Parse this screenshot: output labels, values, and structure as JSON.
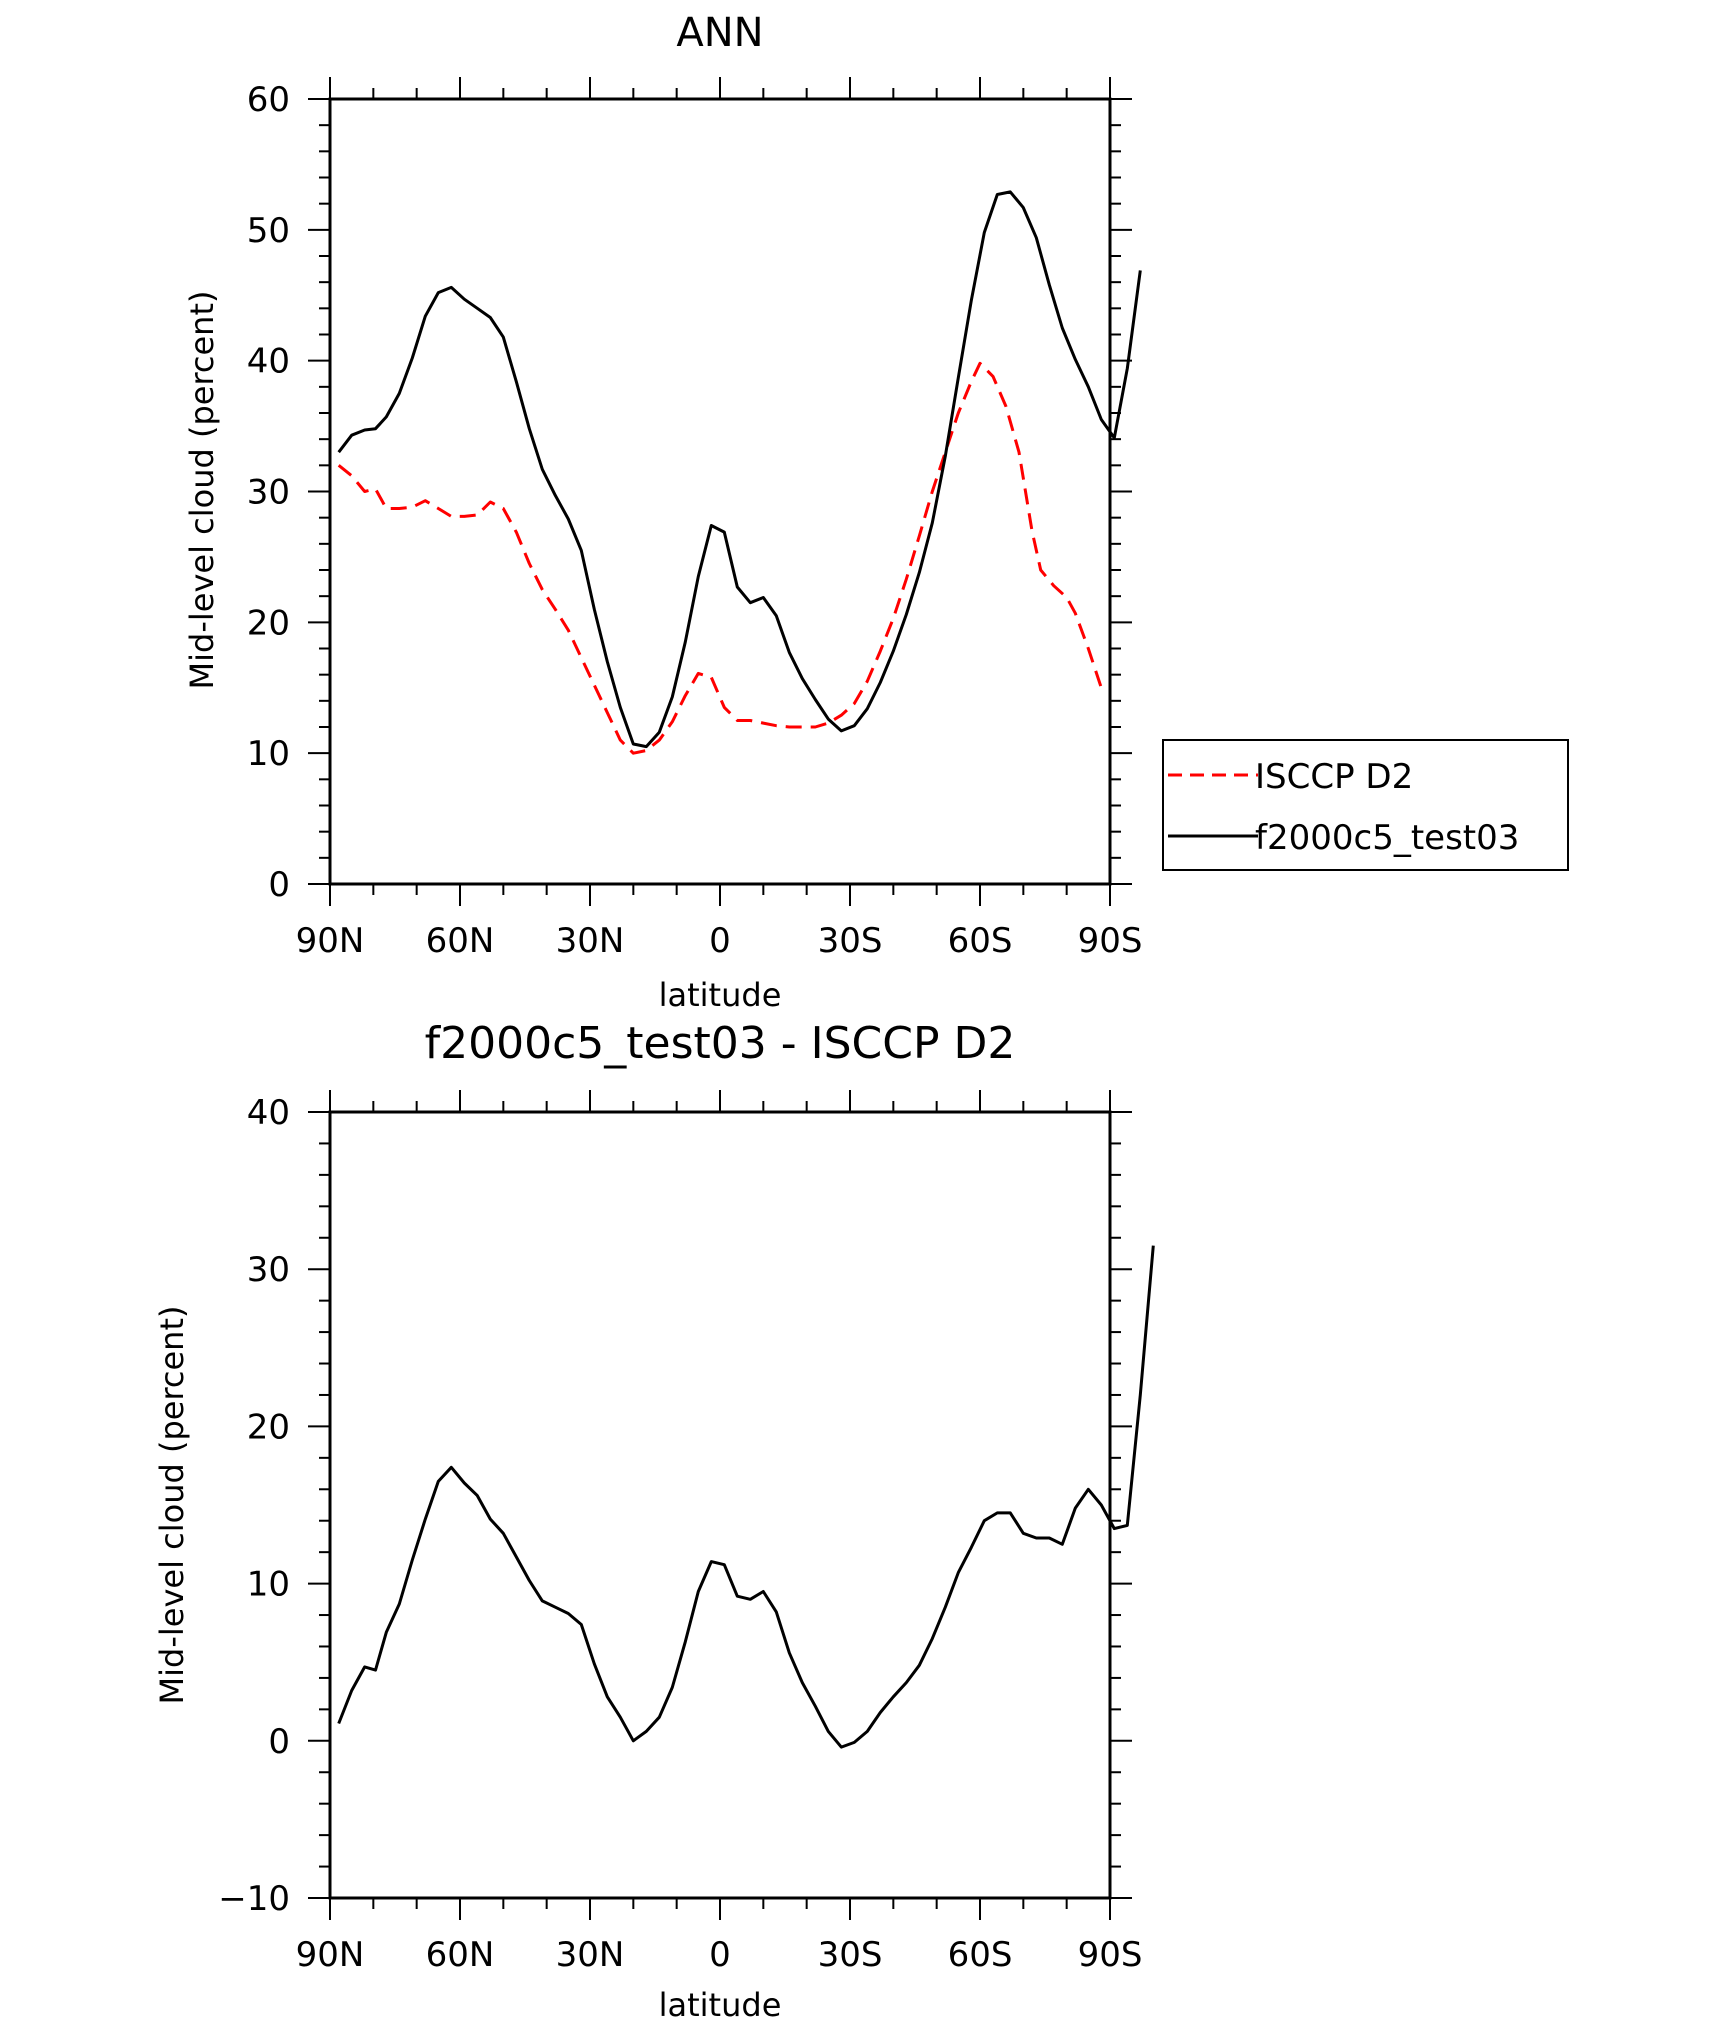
{
  "chart_data": [
    {
      "type": "line",
      "title": "ANN",
      "xlabel": "latitude",
      "ylabel": "Mid-level cloud (percent)",
      "xlim": [
        90,
        -90
      ],
      "ylim": [
        0,
        60
      ],
      "x_ticks": [
        90,
        60,
        30,
        0,
        -30,
        -60,
        -90
      ],
      "x_tick_labels": [
        "90N",
        "60N",
        "30N",
        "0",
        "30S",
        "60S",
        "90S"
      ],
      "y_ticks": [
        0,
        10,
        20,
        30,
        40,
        50,
        60
      ],
      "y_tick_labels": [
        "0",
        "10",
        "20",
        "30",
        "40",
        "50",
        "60"
      ],
      "legend_position": "right",
      "series": [
        {
          "name": "ISCCP D2",
          "color": "#ff0000",
          "style": "dashed",
          "points": [
            [
              88,
              32.0
            ],
            [
              85,
              31.2
            ],
            [
              82,
              30.0
            ],
            [
              79.5,
              30.2
            ],
            [
              77,
              28.7
            ],
            [
              74,
              28.7
            ],
            [
              71,
              28.8
            ],
            [
              68,
              29.3
            ],
            [
              65,
              28.7
            ],
            [
              62,
              28.1
            ],
            [
              59,
              28.1
            ],
            [
              56,
              28.2
            ],
            [
              53,
              29.2
            ],
            [
              50,
              28.7
            ],
            [
              47,
              26.9
            ],
            [
              44,
              24.5
            ],
            [
              41,
              22.5
            ],
            [
              38,
              21.0
            ],
            [
              35,
              19.4
            ],
            [
              32,
              17.3
            ],
            [
              29,
              15.2
            ],
            [
              26,
              13.1
            ],
            [
              23,
              11.0
            ],
            [
              20,
              10.0
            ],
            [
              17,
              10.2
            ],
            [
              14,
              11.0
            ],
            [
              11,
              12.4
            ],
            [
              8,
              14.4
            ],
            [
              5,
              16.1
            ],
            [
              2,
              15.8
            ],
            [
              -1,
              13.5
            ],
            [
              -4,
              12.5
            ],
            [
              -7,
              12.5
            ],
            [
              -10,
              12.3
            ],
            [
              -13,
              12.1
            ],
            [
              -16,
              12.0
            ],
            [
              -19,
              12.0
            ],
            [
              -22,
              12.0
            ],
            [
              -25,
              12.3
            ],
            [
              -28,
              12.9
            ],
            [
              -31,
              13.8
            ],
            [
              -34,
              15.5
            ],
            [
              -37,
              17.8
            ],
            [
              -40,
              20.3
            ],
            [
              -43,
              23.3
            ],
            [
              -46,
              26.6
            ],
            [
              -49,
              30.0
            ],
            [
              -52,
              33.0
            ],
            [
              -55,
              36.0
            ],
            [
              -58,
              38.4
            ],
            [
              -60,
              39.8
            ],
            [
              -63,
              38.8
            ],
            [
              -66,
              36.5
            ],
            [
              -69,
              33.0
            ],
            [
              -72,
              27.0
            ],
            [
              -74,
              24.0
            ],
            [
              -77,
              22.8
            ],
            [
              -80,
              21.9
            ],
            [
              -82,
              20.7
            ],
            [
              -85,
              18.0
            ],
            [
              -88,
              15.0
            ]
          ]
        },
        {
          "name": "f2000c5_test03",
          "color": "#000000",
          "style": "solid",
          "points": [
            [
              88,
              33.0
            ],
            [
              85,
              34.3
            ],
            [
              82,
              34.7
            ],
            [
              79.5,
              34.8
            ],
            [
              77,
              35.7
            ],
            [
              74,
              37.5
            ],
            [
              71,
              40.2
            ],
            [
              68,
              43.4
            ],
            [
              65,
              45.2
            ],
            [
              62,
              45.6
            ],
            [
              59,
              44.7
            ],
            [
              56,
              44.0
            ],
            [
              53,
              43.3
            ],
            [
              50,
              41.8
            ],
            [
              47,
              38.4
            ],
            [
              44,
              34.8
            ],
            [
              41,
              31.7
            ],
            [
              38,
              29.7
            ],
            [
              35,
              27.9
            ],
            [
              32,
              25.5
            ],
            [
              29,
              21.0
            ],
            [
              26,
              17.0
            ],
            [
              23,
              13.5
            ],
            [
              20,
              10.7
            ],
            [
              17,
              10.5
            ],
            [
              14,
              11.6
            ],
            [
              11,
              14.3
            ],
            [
              8,
              18.5
            ],
            [
              5,
              23.5
            ],
            [
              2,
              27.4
            ],
            [
              -1,
              26.9
            ],
            [
              -4,
              22.7
            ],
            [
              -7,
              21.5
            ],
            [
              -10,
              21.9
            ],
            [
              -13,
              20.5
            ],
            [
              -16,
              17.7
            ],
            [
              -19,
              15.7
            ],
            [
              -22,
              14.1
            ],
            [
              -25,
              12.6
            ],
            [
              -28,
              11.7
            ],
            [
              -31,
              12.1
            ],
            [
              -34,
              13.4
            ],
            [
              -37,
              15.4
            ],
            [
              -40,
              17.8
            ],
            [
              -43,
              20.6
            ],
            [
              -46,
              23.8
            ],
            [
              -49,
              27.6
            ],
            [
              -52,
              32.7
            ],
            [
              -55,
              38.7
            ],
            [
              -58,
              44.6
            ],
            [
              -61,
              49.8
            ],
            [
              -64,
              52.7
            ],
            [
              -67,
              52.9
            ],
            [
              -70,
              51.7
            ],
            [
              -73,
              49.4
            ],
            [
              -76,
              45.8
            ],
            [
              -79,
              42.5
            ],
            [
              -82,
              40.1
            ],
            [
              -85,
              38.0
            ],
            [
              -88,
              35.5
            ],
            [
              -91,
              34.1
            ],
            [
              -94,
              39.4
            ],
            [
              -97,
              46.9
            ]
          ]
        }
      ]
    },
    {
      "type": "line",
      "title": "f2000c5_test03 - ISCCP D2",
      "xlabel": "latitude",
      "ylabel": "Mid-level cloud (percent)",
      "xlim": [
        90,
        -90
      ],
      "ylim": [
        -10,
        40
      ],
      "x_ticks": [
        90,
        60,
        30,
        0,
        -30,
        -60,
        -90
      ],
      "x_tick_labels": [
        "90N",
        "60N",
        "30N",
        "0",
        "30S",
        "60S",
        "90S"
      ],
      "y_ticks": [
        -10,
        0,
        10,
        20,
        30,
        40
      ],
      "y_tick_labels": [
        "−10",
        "0",
        "10",
        "20",
        "30",
        "40"
      ],
      "series": [
        {
          "color": "#000000",
          "style": "solid",
          "points": [
            [
              88,
              1.1
            ],
            [
              85,
              3.2
            ],
            [
              82,
              4.7
            ],
            [
              79.5,
              4.5
            ],
            [
              77,
              6.9
            ],
            [
              74,
              8.7
            ],
            [
              71,
              11.5
            ],
            [
              68,
              14.1
            ],
            [
              65,
              16.5
            ],
            [
              62,
              17.4
            ],
            [
              59,
              16.4
            ],
            [
              56,
              15.6
            ],
            [
              53,
              14.1
            ],
            [
              50,
              13.2
            ],
            [
              47,
              11.7
            ],
            [
              44,
              10.2
            ],
            [
              41,
              8.9
            ],
            [
              38,
              8.5
            ],
            [
              35,
              8.1
            ],
            [
              32,
              7.4
            ],
            [
              29,
              4.9
            ],
            [
              26,
              2.8
            ],
            [
              23,
              1.5
            ],
            [
              20,
              0.0
            ],
            [
              17,
              0.6
            ],
            [
              14,
              1.5
            ],
            [
              11,
              3.4
            ],
            [
              8,
              6.3
            ],
            [
              5,
              9.5
            ],
            [
              2,
              11.4
            ],
            [
              -1,
              11.2
            ],
            [
              -4,
              9.2
            ],
            [
              -7,
              9.0
            ],
            [
              -10,
              9.5
            ],
            [
              -13,
              8.2
            ],
            [
              -16,
              5.6
            ],
            [
              -19,
              3.7
            ],
            [
              -22,
              2.2
            ],
            [
              -25,
              0.6
            ],
            [
              -28,
              -0.4
            ],
            [
              -31,
              -0.1
            ],
            [
              -34,
              0.6
            ],
            [
              -37,
              1.8
            ],
            [
              -40,
              2.8
            ],
            [
              -43,
              3.7
            ],
            [
              -46,
              4.8
            ],
            [
              -49,
              6.5
            ],
            [
              -52,
              8.5
            ],
            [
              -55,
              10.7
            ],
            [
              -58,
              12.3
            ],
            [
              -61,
              14.0
            ],
            [
              -64,
              14.5
            ],
            [
              -67,
              14.5
            ],
            [
              -70,
              13.2
            ],
            [
              -73,
              12.9
            ],
            [
              -76,
              12.9
            ],
            [
              -79,
              12.5
            ],
            [
              -82,
              14.8
            ],
            [
              -85,
              16.0
            ],
            [
              -88,
              15.0
            ],
            [
              -91,
              13.5
            ],
            [
              -94,
              13.7
            ],
            [
              -97,
              22.0
            ],
            [
              -100,
              31.5
            ]
          ]
        }
      ]
    }
  ]
}
